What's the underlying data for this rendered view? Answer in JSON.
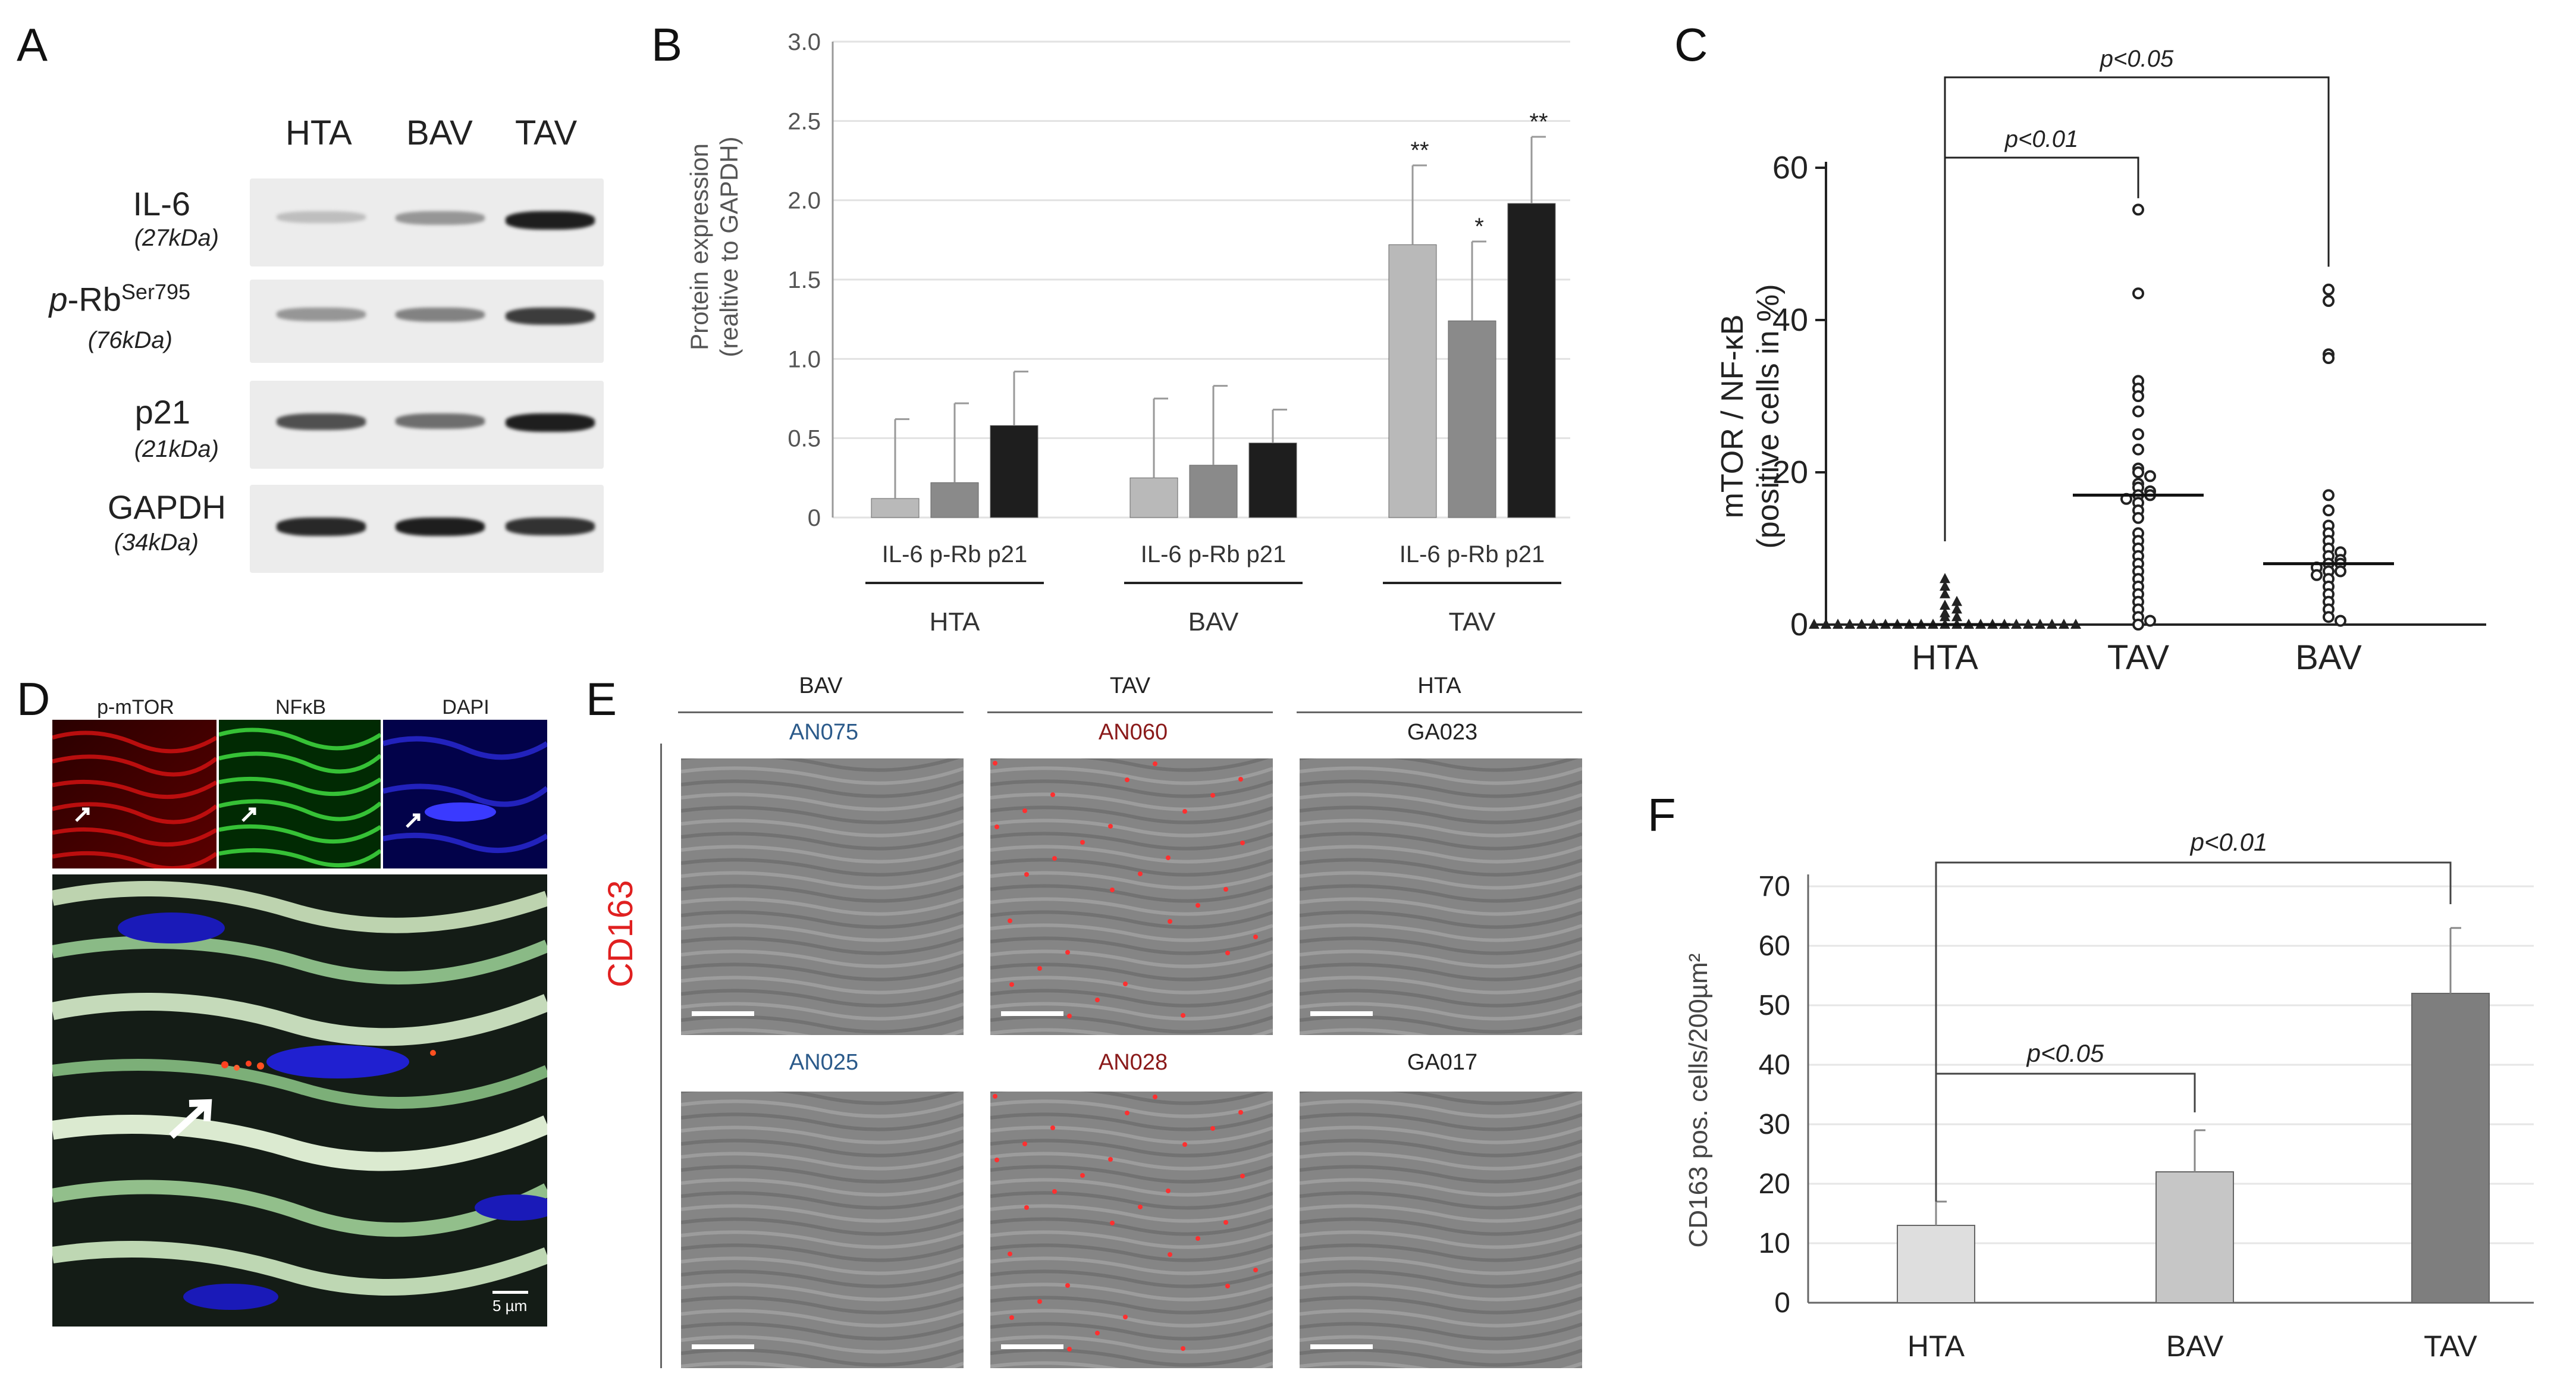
{
  "panels": {
    "a": "A",
    "b": "B",
    "c": "C",
    "d": "D",
    "e": "E",
    "f": "F"
  },
  "western_blot": {
    "lanes": [
      "HTA",
      "BAV",
      "TAV"
    ],
    "rows": [
      {
        "name": "IL-6",
        "sup": "",
        "kda": "(27kDa)",
        "intensity": [
          0.15,
          0.35,
          0.95
        ]
      },
      {
        "name": "p-Rb",
        "sup": "Ser795",
        "kda": "(76kDa)",
        "intensity": [
          0.35,
          0.45,
          0.8
        ]
      },
      {
        "name": "p21",
        "sup": "",
        "kda": "(21kDa)",
        "intensity": [
          0.7,
          0.55,
          0.95
        ]
      },
      {
        "name": "GAPDH",
        "sup": "",
        "kda": "(34kDa)",
        "intensity": [
          0.9,
          0.95,
          0.85
        ]
      }
    ]
  },
  "fluorescence": {
    "channels": [
      "p-mTOR",
      "NFκB",
      "DAPI"
    ],
    "scale": "5 µm"
  },
  "cd163_images": {
    "stain": "CD163",
    "groups": [
      {
        "name": "BAV",
        "color": "#2b5a8a",
        "samples": [
          "AN075",
          "AN025"
        ]
      },
      {
        "name": "TAV",
        "color": "#8a1a1a",
        "samples": [
          "AN060",
          "AN028"
        ]
      },
      {
        "name": "HTA",
        "color": "#8a1a1a",
        "samples": [
          "GA023",
          "GA017"
        ]
      }
    ],
    "sample_colors": [
      "#2b5a8a",
      "#8a1a1a",
      "#222222"
    ]
  },
  "chart_data": [
    {
      "id": "B",
      "type": "bar",
      "groups": [
        "HTA",
        "BAV",
        "TAV"
      ],
      "categories": [
        "IL-6",
        "p-Rb",
        "p21"
      ],
      "category_label": "IL-6 p-Rb p21",
      "series": [
        {
          "name": "IL-6",
          "color": "#b9b9b9",
          "values": [
            0.12,
            0.25,
            1.72
          ],
          "errors": [
            0.5,
            0.5,
            0.5
          ]
        },
        {
          "name": "p-Rb",
          "color": "#8a8a8a",
          "values": [
            0.22,
            0.33,
            1.24
          ],
          "errors": [
            0.5,
            0.5,
            0.5
          ]
        },
        {
          "name": "p21",
          "color": "#1e1e1e",
          "values": [
            0.58,
            0.47,
            1.98
          ],
          "errors": [
            0.34,
            0.21,
            0.42
          ]
        }
      ],
      "significance": [
        {
          "group": "TAV",
          "labels": [
            "**",
            "*",
            "**"
          ]
        }
      ],
      "ylabel_1": "Protein expression",
      "ylabel_2": "(realtive to GAPDH)",
      "yticks": [
        "0",
        "0.5",
        "1.0",
        "1.5",
        "2.0",
        "2.5",
        "3.0"
      ],
      "ylim": [
        0,
        3.0
      ]
    },
    {
      "id": "C",
      "type": "scatter",
      "groups": [
        "HTA",
        "TAV",
        "BAV"
      ],
      "ylabel_1": "mTOR / NF-κB",
      "ylabel_2": "(positive cells in %)",
      "yticks": [
        "0",
        "20",
        "40",
        "60"
      ],
      "ylim": [
        0,
        60
      ],
      "medians": [
        0,
        17,
        8
      ],
      "points": [
        [
          0,
          0,
          0,
          0,
          0,
          0,
          0,
          0,
          0,
          0,
          0,
          0,
          0,
          0,
          0,
          0,
          0,
          0,
          0,
          0,
          0,
          0,
          0,
          1,
          1,
          1.5,
          2,
          2.5,
          3,
          4,
          5,
          6
        ],
        [
          54.5,
          43.5,
          32,
          31,
          30,
          28,
          25,
          23,
          20.5,
          20,
          19.5,
          18.5,
          18,
          17.5,
          17,
          17,
          16.5,
          16,
          15,
          14,
          12,
          11,
          10,
          9,
          8,
          7,
          6,
          5,
          4,
          3,
          2,
          1,
          0.5,
          0
        ],
        [
          44,
          42.5,
          35.5,
          35,
          17,
          15,
          13,
          12,
          11,
          10,
          9.5,
          9,
          8.5,
          8,
          8,
          7.5,
          7,
          7,
          6.5,
          6,
          5,
          4,
          3,
          2,
          1,
          0.5
        ]
      ],
      "comparisons": [
        {
          "label": "p<0.01"
        },
        {
          "label": "p<0.05"
        }
      ]
    },
    {
      "id": "F",
      "type": "bar",
      "categories": [
        "HTA",
        "BAV",
        "TAV"
      ],
      "values": [
        13,
        22,
        52
      ],
      "errors": [
        4,
        7,
        11
      ],
      "colors": [
        "#dedede",
        "#c6c6c6",
        "#7e7e7e"
      ],
      "ylabel": "CD163 pos. cells/200µm²",
      "yticks": [
        "0",
        "10",
        "20",
        "30",
        "40",
        "50",
        "60",
        "70"
      ],
      "ylim": [
        0,
        70
      ],
      "comparisons": [
        {
          "label": "p<0.05"
        },
        {
          "label": "p<0.01"
        }
      ]
    }
  ]
}
